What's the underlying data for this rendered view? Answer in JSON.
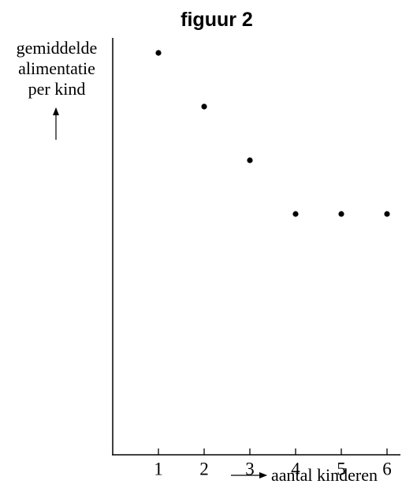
{
  "chart_data": {
    "type": "scatter",
    "title": "figuur 2",
    "ylabel_lines": [
      "gemiddelde",
      "alimentatie",
      "per kind"
    ],
    "xlabel": "aantal kinderen",
    "x_ticks": [
      "1",
      "2",
      "3",
      "4",
      "5",
      "6"
    ],
    "points": [
      {
        "x": 1,
        "y": 4
      },
      {
        "x": 2,
        "y": 3
      },
      {
        "x": 3,
        "y": 2
      },
      {
        "x": 4,
        "y": 1
      },
      {
        "x": 5,
        "y": 1
      },
      {
        "x": 6,
        "y": 1
      }
    ],
    "xlim": [
      0,
      6
    ],
    "grid": false
  }
}
